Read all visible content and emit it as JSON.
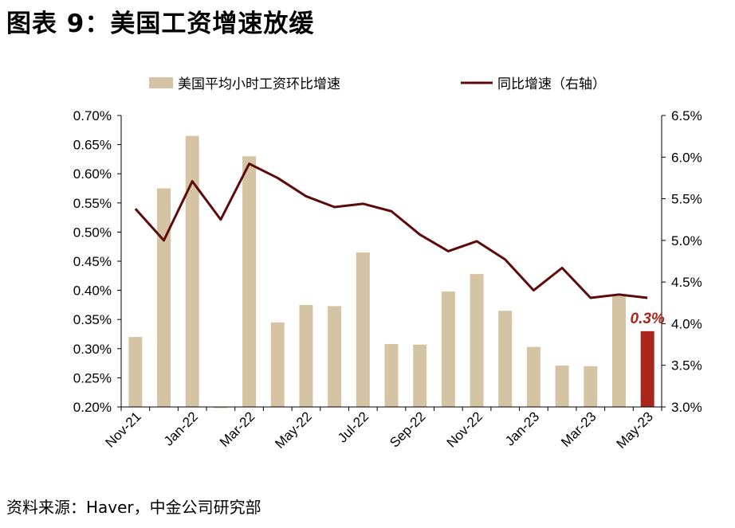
{
  "figure_title": "图表 9：美国工资增速放缓",
  "source": "资料来源：Haver，中金公司研究部",
  "colors": {
    "bar": "#d4c4a4",
    "highlight_bar": "#a8261c",
    "line": "#5c0a0a",
    "axis": "#000000"
  },
  "chart_data": {
    "type": "bar",
    "title": "图表 9：美国工资增速放缓",
    "x_tick_labels": [
      "Nov-21",
      "Jan-22",
      "Mar-22",
      "May-22",
      "Jul-22",
      "Sep-22",
      "Nov-22",
      "Jan-23",
      "Mar-23",
      "May-23"
    ],
    "categories": [
      "Nov-21",
      "Dec-21",
      "Jan-22",
      "Feb-22",
      "Mar-22",
      "Apr-22",
      "May-22",
      "Jun-22",
      "Jul-22",
      "Aug-22",
      "Sep-22",
      "Oct-22",
      "Nov-22",
      "Dec-22",
      "Jan-23",
      "Feb-23",
      "Mar-23",
      "Apr-23",
      "May-23"
    ],
    "series": [
      {
        "name": "美国平均小时工资环比增速",
        "type": "bar",
        "axis": "left",
        "values": [
          0.32,
          0.575,
          0.665,
          0.198,
          0.63,
          0.345,
          0.375,
          0.373,
          0.465,
          0.308,
          0.307,
          0.398,
          0.428,
          0.365,
          0.303,
          0.271,
          0.27,
          0.39,
          0.33
        ]
      },
      {
        "name": "同比增速（右轴）",
        "type": "line",
        "axis": "right",
        "values": [
          5.38,
          5.0,
          5.71,
          5.25,
          5.92,
          5.75,
          5.53,
          5.4,
          5.44,
          5.35,
          5.07,
          4.87,
          4.99,
          4.77,
          4.4,
          4.67,
          4.31,
          4.35,
          4.31
        ]
      }
    ],
    "highlight_index": 18,
    "annotation": {
      "text": "0.3%",
      "index": 18
    },
    "y_left": {
      "min": 0.2,
      "max": 0.7,
      "step": 0.05,
      "tick_labels": [
        "0.20%",
        "0.25%",
        "0.30%",
        "0.35%",
        "0.40%",
        "0.45%",
        "0.50%",
        "0.55%",
        "0.60%",
        "0.65%",
        "0.70%"
      ]
    },
    "y_right": {
      "min": 3.0,
      "max": 6.5,
      "step": 0.5,
      "tick_labels": [
        "3.0%",
        "3.5%",
        "4.0%",
        "4.5%",
        "5.0%",
        "5.5%",
        "6.0%",
        "6.5%"
      ]
    },
    "xlabel": "",
    "ylabel": "",
    "legend_position": "top",
    "grid": false
  }
}
